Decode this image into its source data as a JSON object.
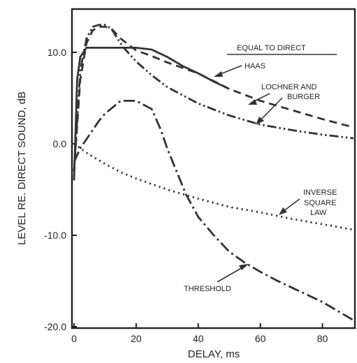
{
  "chart_data": {
    "type": "line",
    "xlabel": "DELAY, ms",
    "ylabel": "LEVEL RE. DIRECT SOUND, dB",
    "xlim": [
      0,
      90
    ],
    "ylim": [
      -20,
      14.5
    ],
    "x_ticks": [
      0,
      20,
      40,
      60,
      80
    ],
    "y_ticks": [
      -20,
      -10,
      0,
      10
    ],
    "x_tick_labels": [
      "0",
      "20",
      "40",
      "60",
      "80"
    ],
    "y_tick_labels": [
      "-20.0",
      "-10.0",
      "0.0",
      "10.0"
    ],
    "grid": false,
    "series": [
      {
        "name": "HAAS",
        "style": "solid",
        "x": [
          0,
          1,
          2,
          4,
          6,
          10,
          20,
          25,
          30,
          35,
          40,
          45,
          50
        ],
        "y": [
          -4,
          7,
          9.5,
          10.5,
          10.5,
          10.5,
          10.5,
          10.3,
          9.5,
          8.5,
          7.7,
          6.8,
          6.0
        ]
      },
      {
        "name": "LOCHNER AND BURGER",
        "style": "dashed",
        "x": [
          0,
          2,
          4,
          6,
          8,
          10,
          12,
          15,
          20,
          25,
          30,
          40,
          50,
          60,
          70,
          80,
          90
        ],
        "y": [
          -3,
          7,
          11,
          12.4,
          12.8,
          12.8,
          12.6,
          11.5,
          10.2,
          9.6,
          8.9,
          7.7,
          6.0,
          4.7,
          3.7,
          2.7,
          1.8
        ]
      },
      {
        "name": "",
        "style": "dash-dot-dot",
        "x": [
          0,
          2,
          4,
          6,
          8,
          10,
          12,
          14,
          16,
          20,
          25,
          30,
          40,
          50,
          60,
          70,
          80,
          90
        ],
        "y": [
          -3,
          8,
          11.5,
          12.8,
          13.0,
          13.0,
          12.6,
          11.5,
          10.5,
          9.0,
          7.5,
          6.2,
          4.4,
          3.1,
          2.1,
          1.5,
          1.0,
          0.6
        ]
      },
      {
        "name": "THRESHOLD",
        "style": "dash-dot",
        "x": [
          0,
          2,
          5,
          8,
          10,
          15,
          20,
          25,
          28,
          30,
          33,
          36,
          40,
          45,
          50,
          55,
          60,
          65,
          70,
          80,
          90
        ],
        "y": [
          -2,
          -0.5,
          1,
          2.5,
          3.3,
          4.7,
          4.7,
          3.8,
          1.5,
          -0.5,
          -3.0,
          -5.5,
          -8.0,
          -10.0,
          -11.8,
          -13.0,
          -14.0,
          -14.9,
          -15.7,
          -17.3,
          -19.3
        ]
      },
      {
        "name": "INVERSE SQUARE LAW",
        "style": "dotted",
        "x": [
          0,
          5,
          10,
          15,
          20,
          30,
          40,
          50,
          60,
          70,
          80,
          90
        ],
        "y": [
          0,
          -1.2,
          -2.2,
          -3.1,
          -3.8,
          -5.0,
          -6.0,
          -6.9,
          -7.5,
          -8.2,
          -8.8,
          -9.4
        ]
      }
    ],
    "annotations": {
      "equal_to_direct": "EQUAL TO DIRECT",
      "haas": "HAAS",
      "lochner_line1": "LOCHNER AND",
      "lochner_line2": "BURGER",
      "inverse_line1": "INVERSE",
      "inverse_line2": "SQUARE",
      "inverse_line3": "LAW",
      "threshold": "THRESHOLD"
    }
  }
}
